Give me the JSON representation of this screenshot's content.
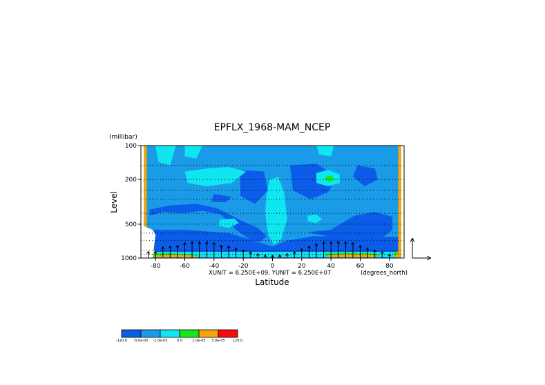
{
  "chart_data": {
    "type": "heatmap",
    "title": "EPFLX_1968-MAM_NCEP",
    "xlabel": "Latitude",
    "xunits": "(degrees_north)",
    "ylabel": "Level",
    "yunits": "(millibar)",
    "xlim": [
      -90,
      90
    ],
    "ylim": [
      1000,
      100
    ],
    "yscale": "log",
    "x_ticks": [
      -80,
      -60,
      -40,
      -20,
      0,
      20,
      40,
      60,
      80
    ],
    "y_ticks": [
      100,
      200,
      500,
      1000
    ],
    "vector_scale_text": "XUNIT = 6.250E+09, YUNIT = 6.250E+07",
    "colorbar": {
      "levels": [
        "-120.0",
        "-5.0e-05",
        "-1.0e-05",
        "0.0",
        "1.0e-05",
        "5.0e-05",
        "120.0"
      ],
      "colors": [
        "#0b5ce8",
        "#1a9be8",
        "#10e6f0",
        "#18e618",
        "#f5a40a",
        "#f50c0c"
      ]
    },
    "regions": [
      {
        "class": 1,
        "points": [
          [
            -88,
            100
          ],
          [
            88,
            100
          ],
          [
            88,
            1000
          ],
          [
            -88,
            1000
          ]
        ]
      },
      {
        "class": 0,
        "points": [
          [
            -84,
            420
          ],
          [
            -75,
            390
          ],
          [
            -62,
            400
          ],
          [
            -48,
            380
          ],
          [
            -35,
            410
          ],
          [
            -25,
            560
          ],
          [
            -15,
            690
          ],
          [
            -8,
            710
          ],
          [
            -4,
            640
          ],
          [
            -10,
            540
          ],
          [
            -22,
            460
          ],
          [
            -38,
            360
          ],
          [
            -52,
            330
          ],
          [
            -70,
            340
          ],
          [
            -84,
            370
          ]
        ]
      },
      {
        "class": 0,
        "points": [
          [
            -86,
            560
          ],
          [
            -60,
            560
          ],
          [
            -30,
            600
          ],
          [
            -10,
            720
          ],
          [
            0,
            790
          ],
          [
            10,
            700
          ],
          [
            28,
            640
          ],
          [
            55,
            640
          ],
          [
            86,
            650
          ],
          [
            86,
            900
          ],
          [
            -86,
            900
          ]
        ]
      },
      {
        "class": 0,
        "points": [
          [
            24,
            590
          ],
          [
            40,
            560
          ],
          [
            56,
            420
          ],
          [
            70,
            390
          ],
          [
            82,
            430
          ],
          [
            82,
            560
          ],
          [
            74,
            680
          ],
          [
            56,
            700
          ],
          [
            38,
            640
          ]
        ]
      },
      {
        "class": 0,
        "points": [
          [
            -22,
            165
          ],
          [
            -6,
            170
          ],
          [
            -3,
            250
          ],
          [
            -12,
            330
          ],
          [
            -22,
            280
          ]
        ]
      },
      {
        "class": 0,
        "points": [
          [
            12,
            150
          ],
          [
            30,
            145
          ],
          [
            44,
            190
          ],
          [
            38,
            260
          ],
          [
            26,
            300
          ],
          [
            14,
            250
          ]
        ]
      },
      {
        "class": 0,
        "points": [
          [
            58,
            150
          ],
          [
            70,
            160
          ],
          [
            72,
            200
          ],
          [
            63,
            230
          ],
          [
            55,
            190
          ]
        ]
      },
      {
        "class": 0,
        "points": [
          [
            -40,
            270
          ],
          [
            -28,
            285
          ],
          [
            -32,
            320
          ],
          [
            -42,
            315
          ]
        ]
      },
      {
        "class": 2,
        "points": [
          [
            -80,
            100
          ],
          [
            -66,
            100
          ],
          [
            -70,
            150
          ],
          [
            -78,
            140
          ]
        ]
      },
      {
        "class": 2,
        "points": [
          [
            -60,
            100
          ],
          [
            -48,
            100
          ],
          [
            -52,
            130
          ],
          [
            -60,
            125
          ]
        ]
      },
      {
        "class": 2,
        "points": [
          [
            30,
            100
          ],
          [
            42,
            100
          ],
          [
            40,
            125
          ],
          [
            32,
            120
          ]
        ]
      },
      {
        "class": 2,
        "points": [
          [
            -60,
            170
          ],
          [
            -45,
            160
          ],
          [
            -30,
            155
          ],
          [
            -18,
            170
          ],
          [
            -28,
            215
          ],
          [
            -45,
            230
          ],
          [
            -58,
            215
          ]
        ]
      },
      {
        "class": 2,
        "points": [
          [
            30,
            175
          ],
          [
            38,
            165
          ],
          [
            46,
            180
          ],
          [
            46,
            215
          ],
          [
            38,
            230
          ],
          [
            30,
            215
          ]
        ]
      },
      {
        "class": 2,
        "points": [
          [
            -2,
            200
          ],
          [
            4,
            190
          ],
          [
            8,
            260
          ],
          [
            10,
            450
          ],
          [
            6,
            680
          ],
          [
            1,
            760
          ],
          [
            -3,
            620
          ],
          [
            -5,
            400
          ],
          [
            -4,
            270
          ]
        ]
      },
      {
        "class": 2,
        "points": [
          [
            -36,
            455
          ],
          [
            -26,
            445
          ],
          [
            -23,
            490
          ],
          [
            -30,
            540
          ],
          [
            -37,
            515
          ]
        ]
      },
      {
        "class": 2,
        "points": [
          [
            24,
            420
          ],
          [
            30,
            410
          ],
          [
            34,
            450
          ],
          [
            30,
            490
          ],
          [
            24,
            470
          ]
        ]
      },
      {
        "class": 2,
        "points": [
          [
            -88,
            880
          ],
          [
            88,
            880
          ],
          [
            88,
            985
          ],
          [
            -88,
            985
          ]
        ]
      },
      {
        "class": 2,
        "points": [
          [
            -88,
            130
          ],
          [
            -86,
            130
          ],
          [
            -86,
            980
          ],
          [
            -88,
            980
          ]
        ]
      },
      {
        "class": 3,
        "points": [
          [
            36,
            190
          ],
          [
            40,
            185
          ],
          [
            43,
            200
          ],
          [
            39,
            210
          ],
          [
            36,
            200
          ]
        ]
      },
      {
        "class": 3,
        "points": [
          [
            -85,
            920
          ],
          [
            -72,
            905
          ],
          [
            -58,
            925
          ],
          [
            -48,
            960
          ],
          [
            -85,
            975
          ]
        ]
      },
      {
        "class": 3,
        "points": [
          [
            36,
            915
          ],
          [
            50,
            900
          ],
          [
            64,
            905
          ],
          [
            74,
            925
          ],
          [
            72,
            960
          ],
          [
            36,
            960
          ]
        ]
      },
      {
        "class": 3,
        "points": [
          [
            83,
            880
          ],
          [
            88,
            870
          ],
          [
            88,
            960
          ],
          [
            83,
            955
          ]
        ]
      },
      {
        "class": 4,
        "points": [
          [
            -88,
            100
          ],
          [
            -86,
            100
          ],
          [
            -86,
            1000
          ],
          [
            -88,
            1000
          ]
        ]
      },
      {
        "class": 4,
        "points": [
          [
            86,
            100
          ],
          [
            88,
            100
          ],
          [
            88,
            1000
          ],
          [
            86,
            1000
          ]
        ]
      },
      {
        "class": 4,
        "points": [
          [
            -86,
            780
          ],
          [
            -82,
            810
          ],
          [
            -80,
            880
          ],
          [
            -82,
            960
          ],
          [
            -86,
            960
          ]
        ]
      },
      {
        "class": 4,
        "points": [
          [
            -80,
            950
          ],
          [
            -66,
            935
          ],
          [
            -55,
            950
          ],
          [
            -50,
            985
          ],
          [
            -80,
            985
          ]
        ]
      },
      {
        "class": 4,
        "points": [
          [
            38,
            945
          ],
          [
            52,
            925
          ],
          [
            64,
            930
          ],
          [
            72,
            950
          ],
          [
            70,
            985
          ],
          [
            38,
            985
          ]
        ]
      },
      {
        "class": 4,
        "points": [
          [
            84,
            915
          ],
          [
            88,
            905
          ],
          [
            88,
            985
          ],
          [
            84,
            985
          ]
        ]
      },
      {
        "class": 5,
        "points": [
          [
            -86,
            820
          ],
          [
            -84,
            820
          ],
          [
            -84,
            900
          ],
          [
            -86,
            900
          ]
        ]
      }
    ],
    "missing_region": [
      [
        -88,
        520
      ],
      [
        -82,
        560
      ],
      [
        -80,
        620
      ],
      [
        -82,
        1000
      ],
      [
        -88,
        1000
      ]
    ],
    "vectors": [
      {
        "lat": -85,
        "p": 950,
        "u": 0,
        "v": 1.0
      },
      {
        "lat": -80,
        "p": 950,
        "u": 0,
        "v": 1.0
      },
      {
        "lat": -75,
        "p": 880,
        "u": 0,
        "v": 1.2
      },
      {
        "lat": -70,
        "p": 880,
        "u": 0,
        "v": 1.4
      },
      {
        "lat": -65,
        "p": 880,
        "u": 0,
        "v": 1.6
      },
      {
        "lat": -60,
        "p": 850,
        "u": 0,
        "v": 1.8
      },
      {
        "lat": -55,
        "p": 850,
        "u": 0,
        "v": 2.0
      },
      {
        "lat": -50,
        "p": 850,
        "u": 0,
        "v": 2.0
      },
      {
        "lat": -45,
        "p": 850,
        "u": 0,
        "v": 2.0
      },
      {
        "lat": -40,
        "p": 850,
        "u": 0,
        "v": 1.8
      },
      {
        "lat": -35,
        "p": 880,
        "u": 0,
        "v": 1.6
      },
      {
        "lat": -30,
        "p": 880,
        "u": 0,
        "v": 1.4
      },
      {
        "lat": -25,
        "p": 900,
        "u": 0,
        "v": 1.2
      },
      {
        "lat": -20,
        "p": 920,
        "u": 0,
        "v": 1.0
      },
      {
        "lat": -15,
        "p": 940,
        "u": 0,
        "v": 0.8
      },
      {
        "lat": -10,
        "p": 960,
        "u": 0,
        "v": 0.6
      },
      {
        "lat": -5,
        "p": 970,
        "u": 0,
        "v": 0.4
      },
      {
        "lat": 0,
        "p": 970,
        "u": 0,
        "v": 0.3
      },
      {
        "lat": 5,
        "p": 970,
        "u": 0,
        "v": 0.4
      },
      {
        "lat": 10,
        "p": 960,
        "u": 0,
        "v": 0.6
      },
      {
        "lat": 15,
        "p": 940,
        "u": 0,
        "v": 0.8
      },
      {
        "lat": 20,
        "p": 900,
        "u": 0,
        "v": 1.0
      },
      {
        "lat": 25,
        "p": 880,
        "u": 0,
        "v": 1.4
      },
      {
        "lat": 30,
        "p": 860,
        "u": 0,
        "v": 1.7
      },
      {
        "lat": 35,
        "p": 850,
        "u": 0,
        "v": 2.0
      },
      {
        "lat": 40,
        "p": 850,
        "u": 0,
        "v": 2.0
      },
      {
        "lat": 45,
        "p": 850,
        "u": 0,
        "v": 2.1
      },
      {
        "lat": 50,
        "p": 850,
        "u": 0,
        "v": 2.0
      },
      {
        "lat": 55,
        "p": 850,
        "u": 0,
        "v": 1.8
      },
      {
        "lat": 60,
        "p": 880,
        "u": 0,
        "v": 1.5
      },
      {
        "lat": 65,
        "p": 900,
        "u": 0,
        "v": 1.2
      },
      {
        "lat": 70,
        "p": 920,
        "u": 0,
        "v": 1.0
      },
      {
        "lat": 75,
        "p": 940,
        "u": 0,
        "v": 0.8
      },
      {
        "lat": 80,
        "p": 960,
        "u": 0,
        "v": 0.5
      }
    ]
  }
}
